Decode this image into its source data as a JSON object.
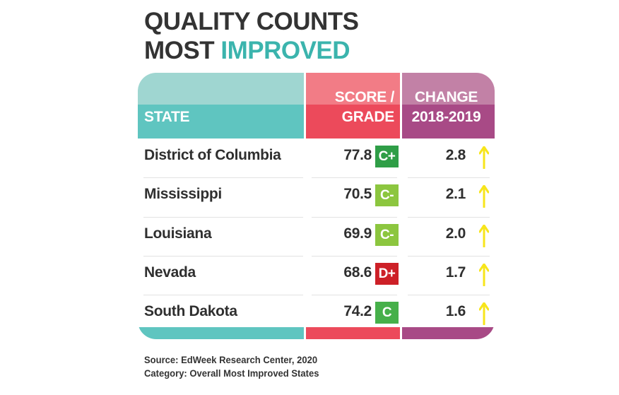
{
  "title": {
    "line1": "QUALITY COUNTS",
    "line2_prefix": "MOST",
    "line2_accent": "IMPROVED"
  },
  "headers": {
    "state": "STATE",
    "score_line1": "SCORE /",
    "score_line2": "GRADE",
    "change_line1": "CHANGE",
    "change_line2": "2018-2019"
  },
  "colors": {
    "state_header_top": "#9fd6d1",
    "state_header_bottom": "#5fc5c0",
    "score_header_top": "#f27c86",
    "score_header_bottom": "#ec4a5b",
    "change_header_top": "#c281a6",
    "change_header_bottom": "#a84a86",
    "arrow": "#f7e51b",
    "grade_C_plus": "#2f9e47",
    "grade_C_minus": "#8cc63f",
    "grade_C": "#46b04a",
    "grade_D_plus": "#cd2027"
  },
  "chart_data": {
    "type": "table",
    "columns": [
      "STATE",
      "SCORE / GRADE",
      "CHANGE 2018-2019"
    ],
    "rows": [
      {
        "state": "District of Columbia",
        "score": "77.8",
        "grade": "C+",
        "grade_color": "#2f9e47",
        "change": "2.8",
        "direction": "up"
      },
      {
        "state": "Mississippi",
        "score": "70.5",
        "grade": "C-",
        "grade_color": "#8cc63f",
        "change": "2.1",
        "direction": "up"
      },
      {
        "state": "Louisiana",
        "score": "69.9",
        "grade": "C-",
        "grade_color": "#8cc63f",
        "change": "2.0",
        "direction": "up"
      },
      {
        "state": "Nevada",
        "score": "68.6",
        "grade": "D+",
        "grade_color": "#cd2027",
        "change": "1.7",
        "direction": "up"
      },
      {
        "state": "South Dakota",
        "score": "74.2",
        "grade": "C",
        "grade_color": "#46b04a",
        "change": "1.6",
        "direction": "up"
      }
    ]
  },
  "source": {
    "line1": "Source: EdWeek Research Center, 2020",
    "line2": "Category: Overall Most Improved States"
  }
}
